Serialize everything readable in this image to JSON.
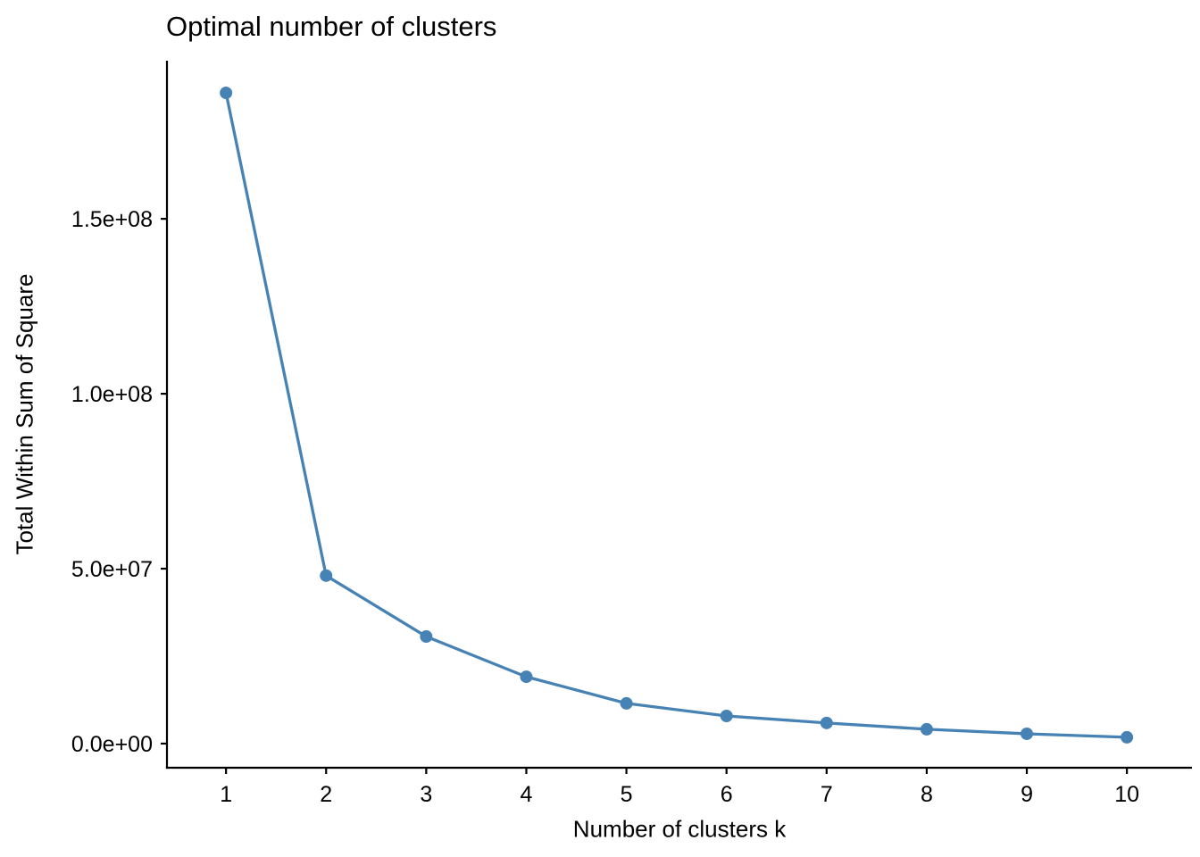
{
  "chart_data": {
    "type": "line",
    "title": "Optimal number of clusters",
    "xlabel": "Number of clusters k",
    "ylabel": "Total Within Sum of Square",
    "x": [
      1,
      2,
      3,
      4,
      5,
      6,
      7,
      8,
      9,
      10
    ],
    "values": [
      186000000,
      48000000,
      30600000,
      19100000,
      11500000,
      7900000,
      5900000,
      4100000,
      2800000,
      1800000
    ],
    "x_ticks": [
      {
        "value": 1,
        "label": "1"
      },
      {
        "value": 2,
        "label": "2"
      },
      {
        "value": 3,
        "label": "3"
      },
      {
        "value": 4,
        "label": "4"
      },
      {
        "value": 5,
        "label": "5"
      },
      {
        "value": 6,
        "label": "6"
      },
      {
        "value": 7,
        "label": "7"
      },
      {
        "value": 8,
        "label": "8"
      },
      {
        "value": 9,
        "label": "9"
      },
      {
        "value": 10,
        "label": "10"
      }
    ],
    "y_ticks": [
      {
        "value": 0,
        "label": "0.0e+00"
      },
      {
        "value": 50000000,
        "label": "5.0e+07"
      },
      {
        "value": 100000000,
        "label": "1.0e+08"
      },
      {
        "value": 150000000,
        "label": "1.5e+08"
      }
    ],
    "xlim": [
      0.41,
      10.65
    ],
    "ylim": [
      -6900000,
      195200000
    ],
    "grid": false,
    "legend": false,
    "line_color": "#4682B4",
    "point_color": "#4682B4",
    "axis_color": "#000000",
    "text_color": "#000000",
    "background": "#FFFFFF"
  }
}
